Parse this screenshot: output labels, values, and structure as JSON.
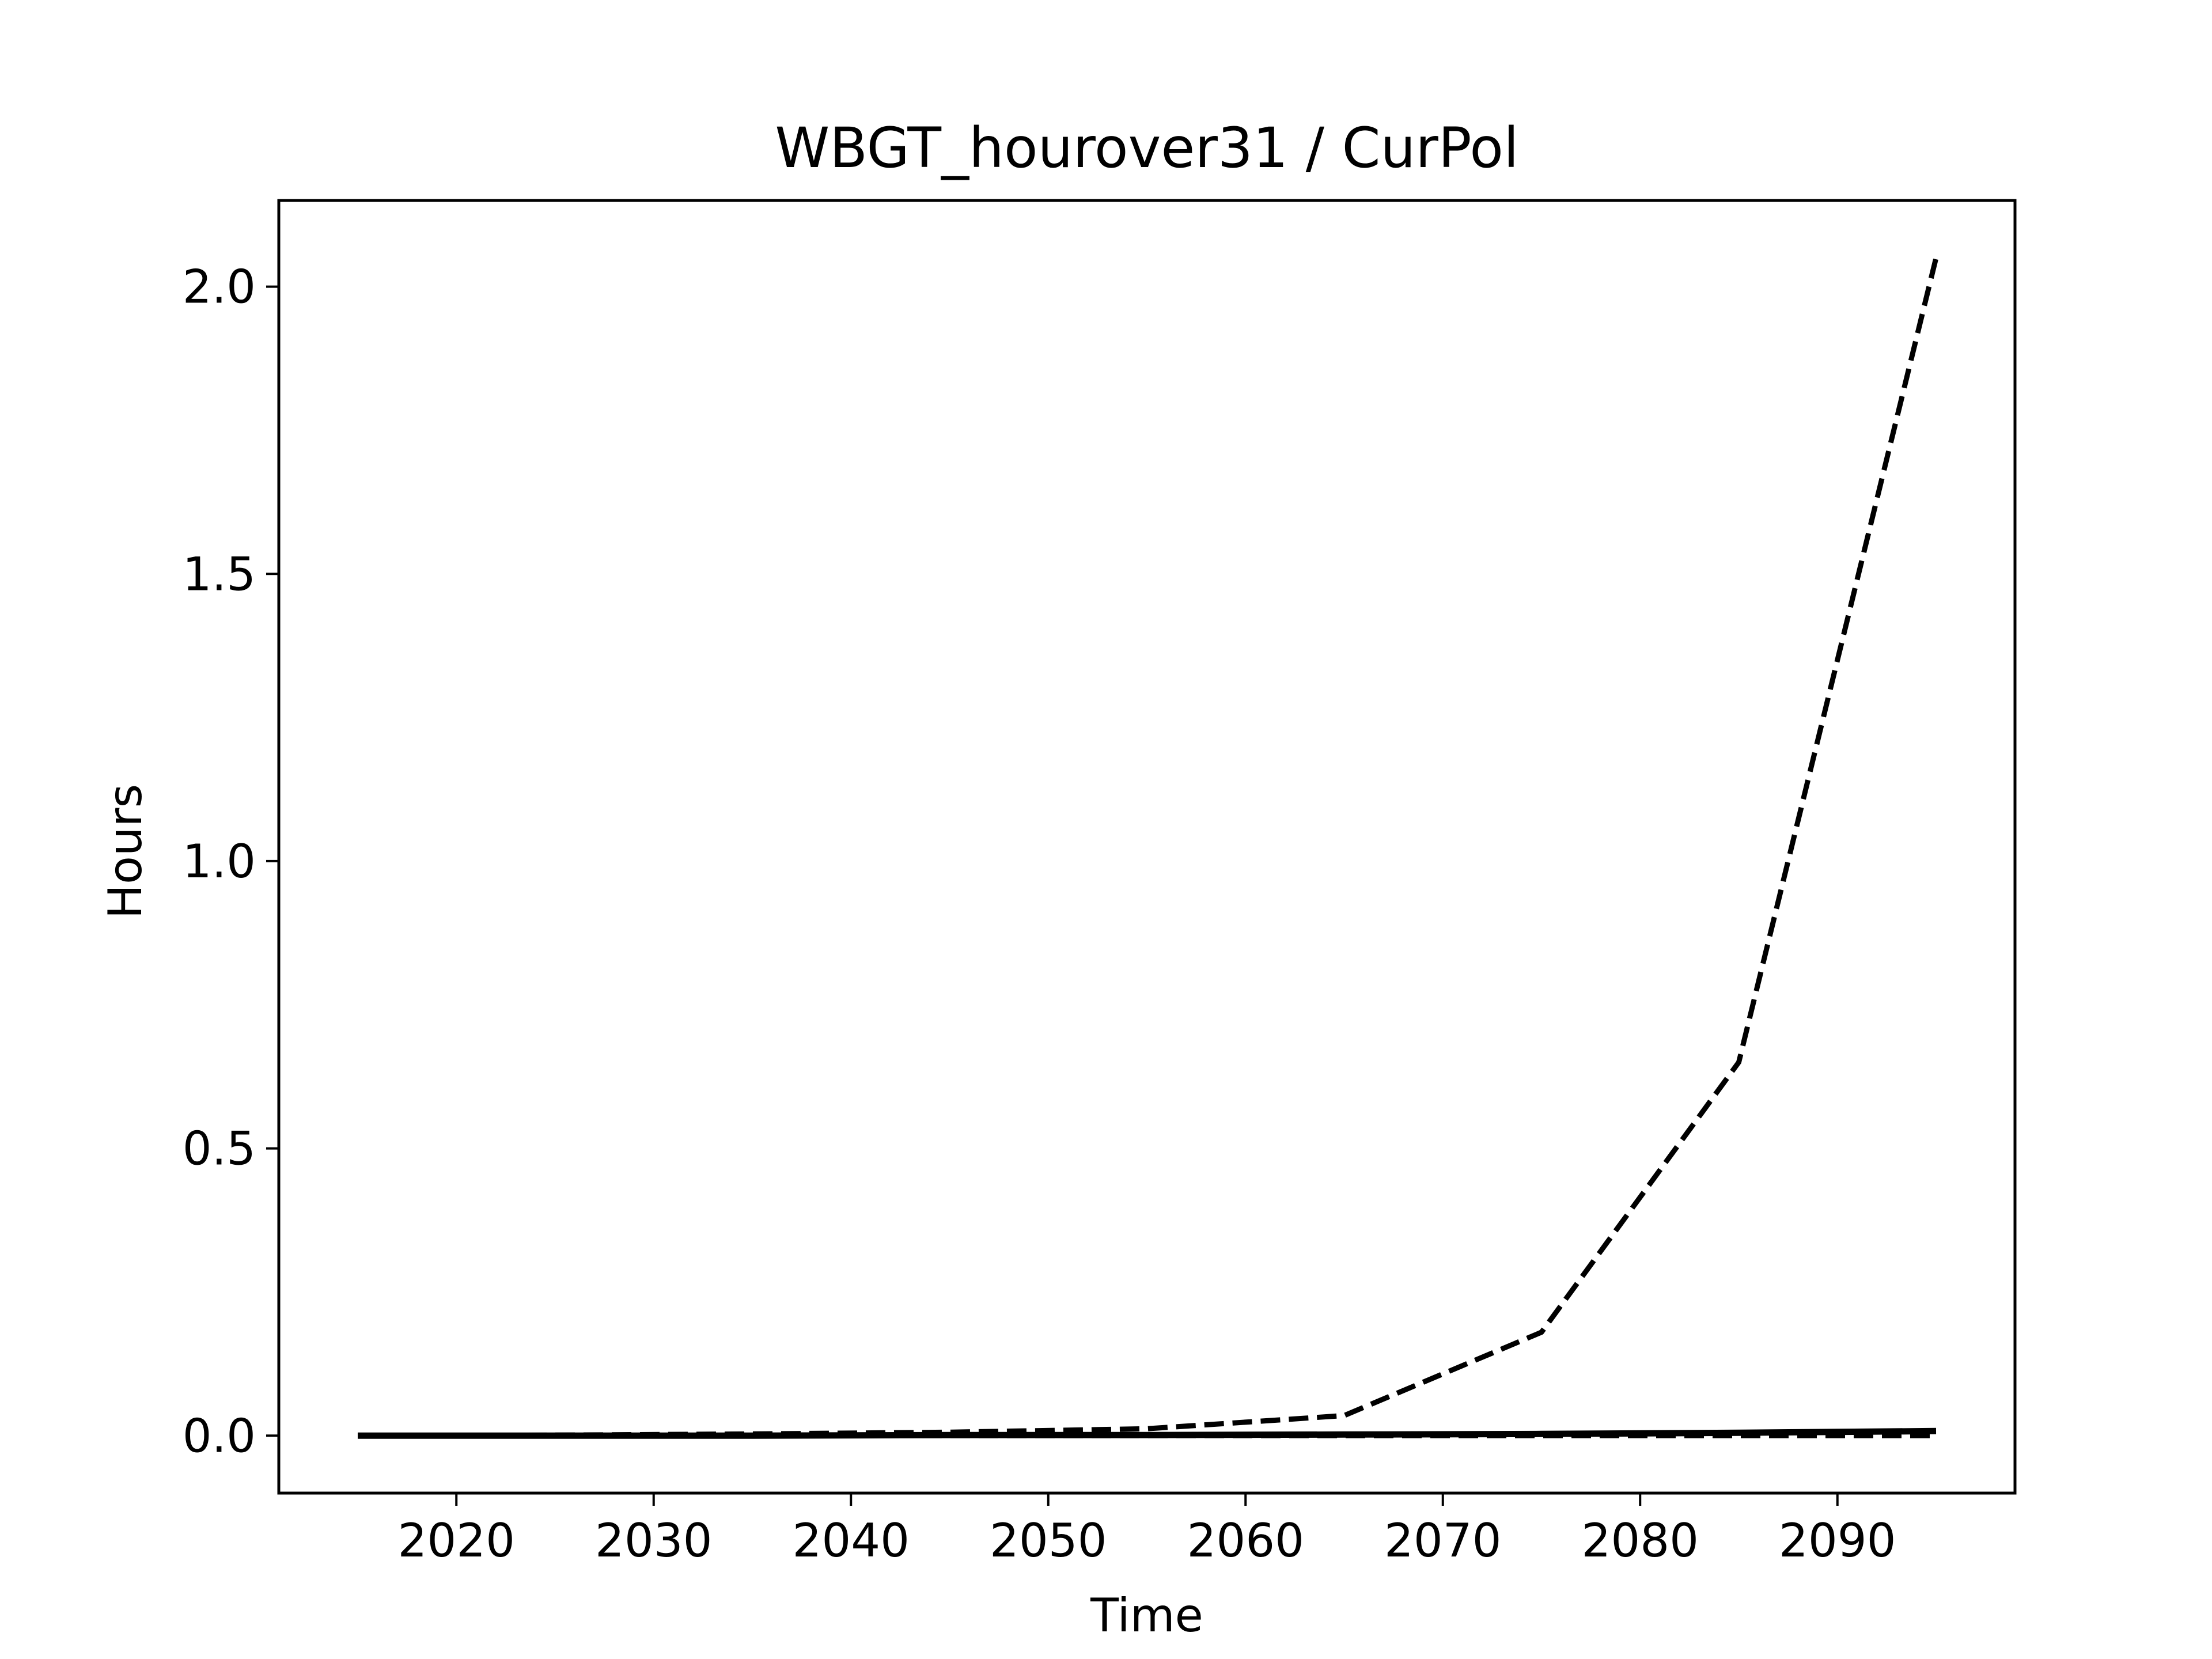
{
  "chart_data": {
    "type": "line",
    "title": "WBGT_hourover31 / CurPol",
    "xlabel": "Time",
    "ylabel": "Hours",
    "xlim": [
      2011,
      2099
    ],
    "ylim": [
      -0.1,
      2.15
    ],
    "x_ticks": [
      2020,
      2030,
      2040,
      2050,
      2060,
      2070,
      2080,
      2090
    ],
    "y_ticks": [
      0.0,
      0.5,
      1.0,
      1.5,
      2.0
    ],
    "y_tick_labels": [
      "0.0",
      "0.5",
      "1.0",
      "1.5",
      "2.0"
    ],
    "grid": false,
    "x": [
      2015,
      2025,
      2035,
      2045,
      2055,
      2065,
      2075,
      2085,
      2095
    ],
    "series": [
      {
        "color": "#000000",
        "style": "dashed",
        "values": [
          0.0,
          0.001,
          0.003,
          0.006,
          0.012,
          0.035,
          0.18,
          0.65,
          2.05
        ]
      },
      {
        "color": "#000000",
        "style": "solid",
        "values": [
          0.0,
          0.0,
          0.0,
          0.001,
          0.001,
          0.002,
          0.003,
          0.005,
          0.008
        ]
      },
      {
        "color": "#000000",
        "style": "dashed",
        "values": [
          0.0,
          0.0,
          0.0,
          0.0,
          0.0,
          0.0,
          0.0,
          0.0,
          0.0
        ]
      }
    ]
  }
}
